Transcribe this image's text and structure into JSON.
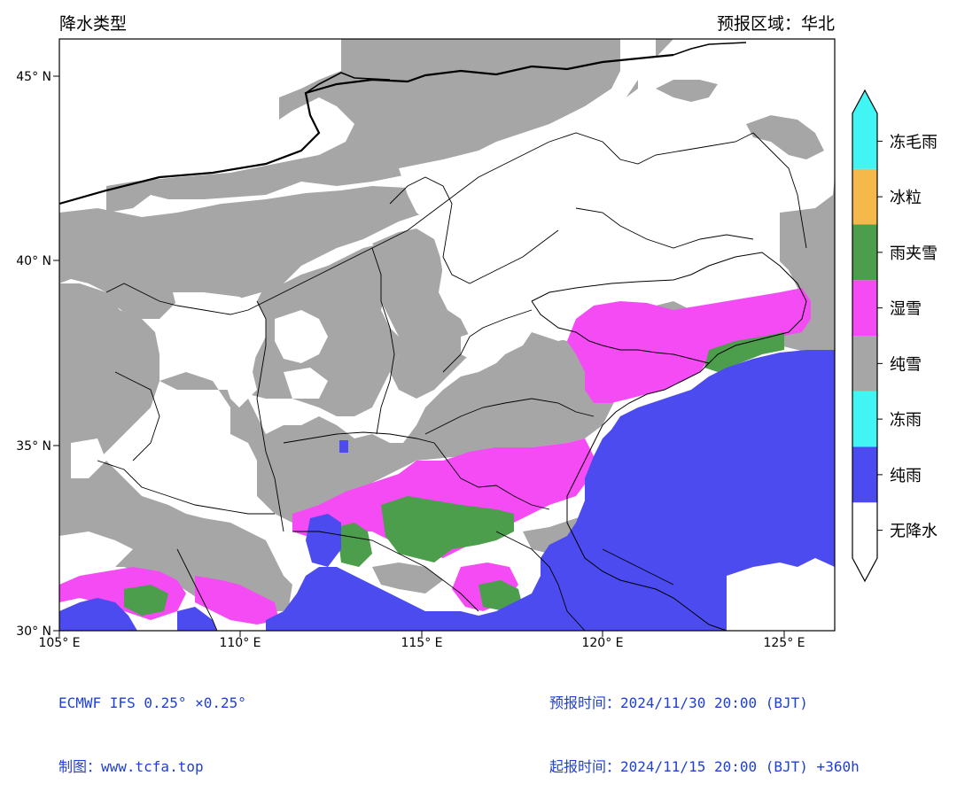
{
  "header": {
    "title": "降水类型",
    "region": "预报区域：华北"
  },
  "axes": {
    "lat_labels": [
      "30° N",
      "35° N",
      "40° N",
      "45° N"
    ],
    "lon_labels": [
      "105° E",
      "110° E",
      "115° E",
      "120° E",
      "125° E"
    ]
  },
  "legend": {
    "categories": [
      {
        "label": "无降水",
        "color": "#ffffff"
      },
      {
        "label": "纯雨",
        "color": "#4b4bf0"
      },
      {
        "label": "冻雨",
        "color": "#41f5f5"
      },
      {
        "label": "纯雪",
        "color": "#a6a6a6"
      },
      {
        "label": "湿雪",
        "color": "#f54bf5"
      },
      {
        "label": "雨夹雪",
        "color": "#4c9d4c"
      },
      {
        "label": "冰粒",
        "color": "#f5b94b"
      },
      {
        "label": "冻毛雨",
        "color": "#41f5f5"
      }
    ]
  },
  "footer": {
    "model": "ECMWF IFS 0.25° ×0.25°",
    "credit": "制图：www.tcfa.top",
    "valid_time": "预报时间：2024/11/30 20:00 (BJT)",
    "init_time": "起报时间：2024/11/15 20:00 (BJT) +360h"
  }
}
